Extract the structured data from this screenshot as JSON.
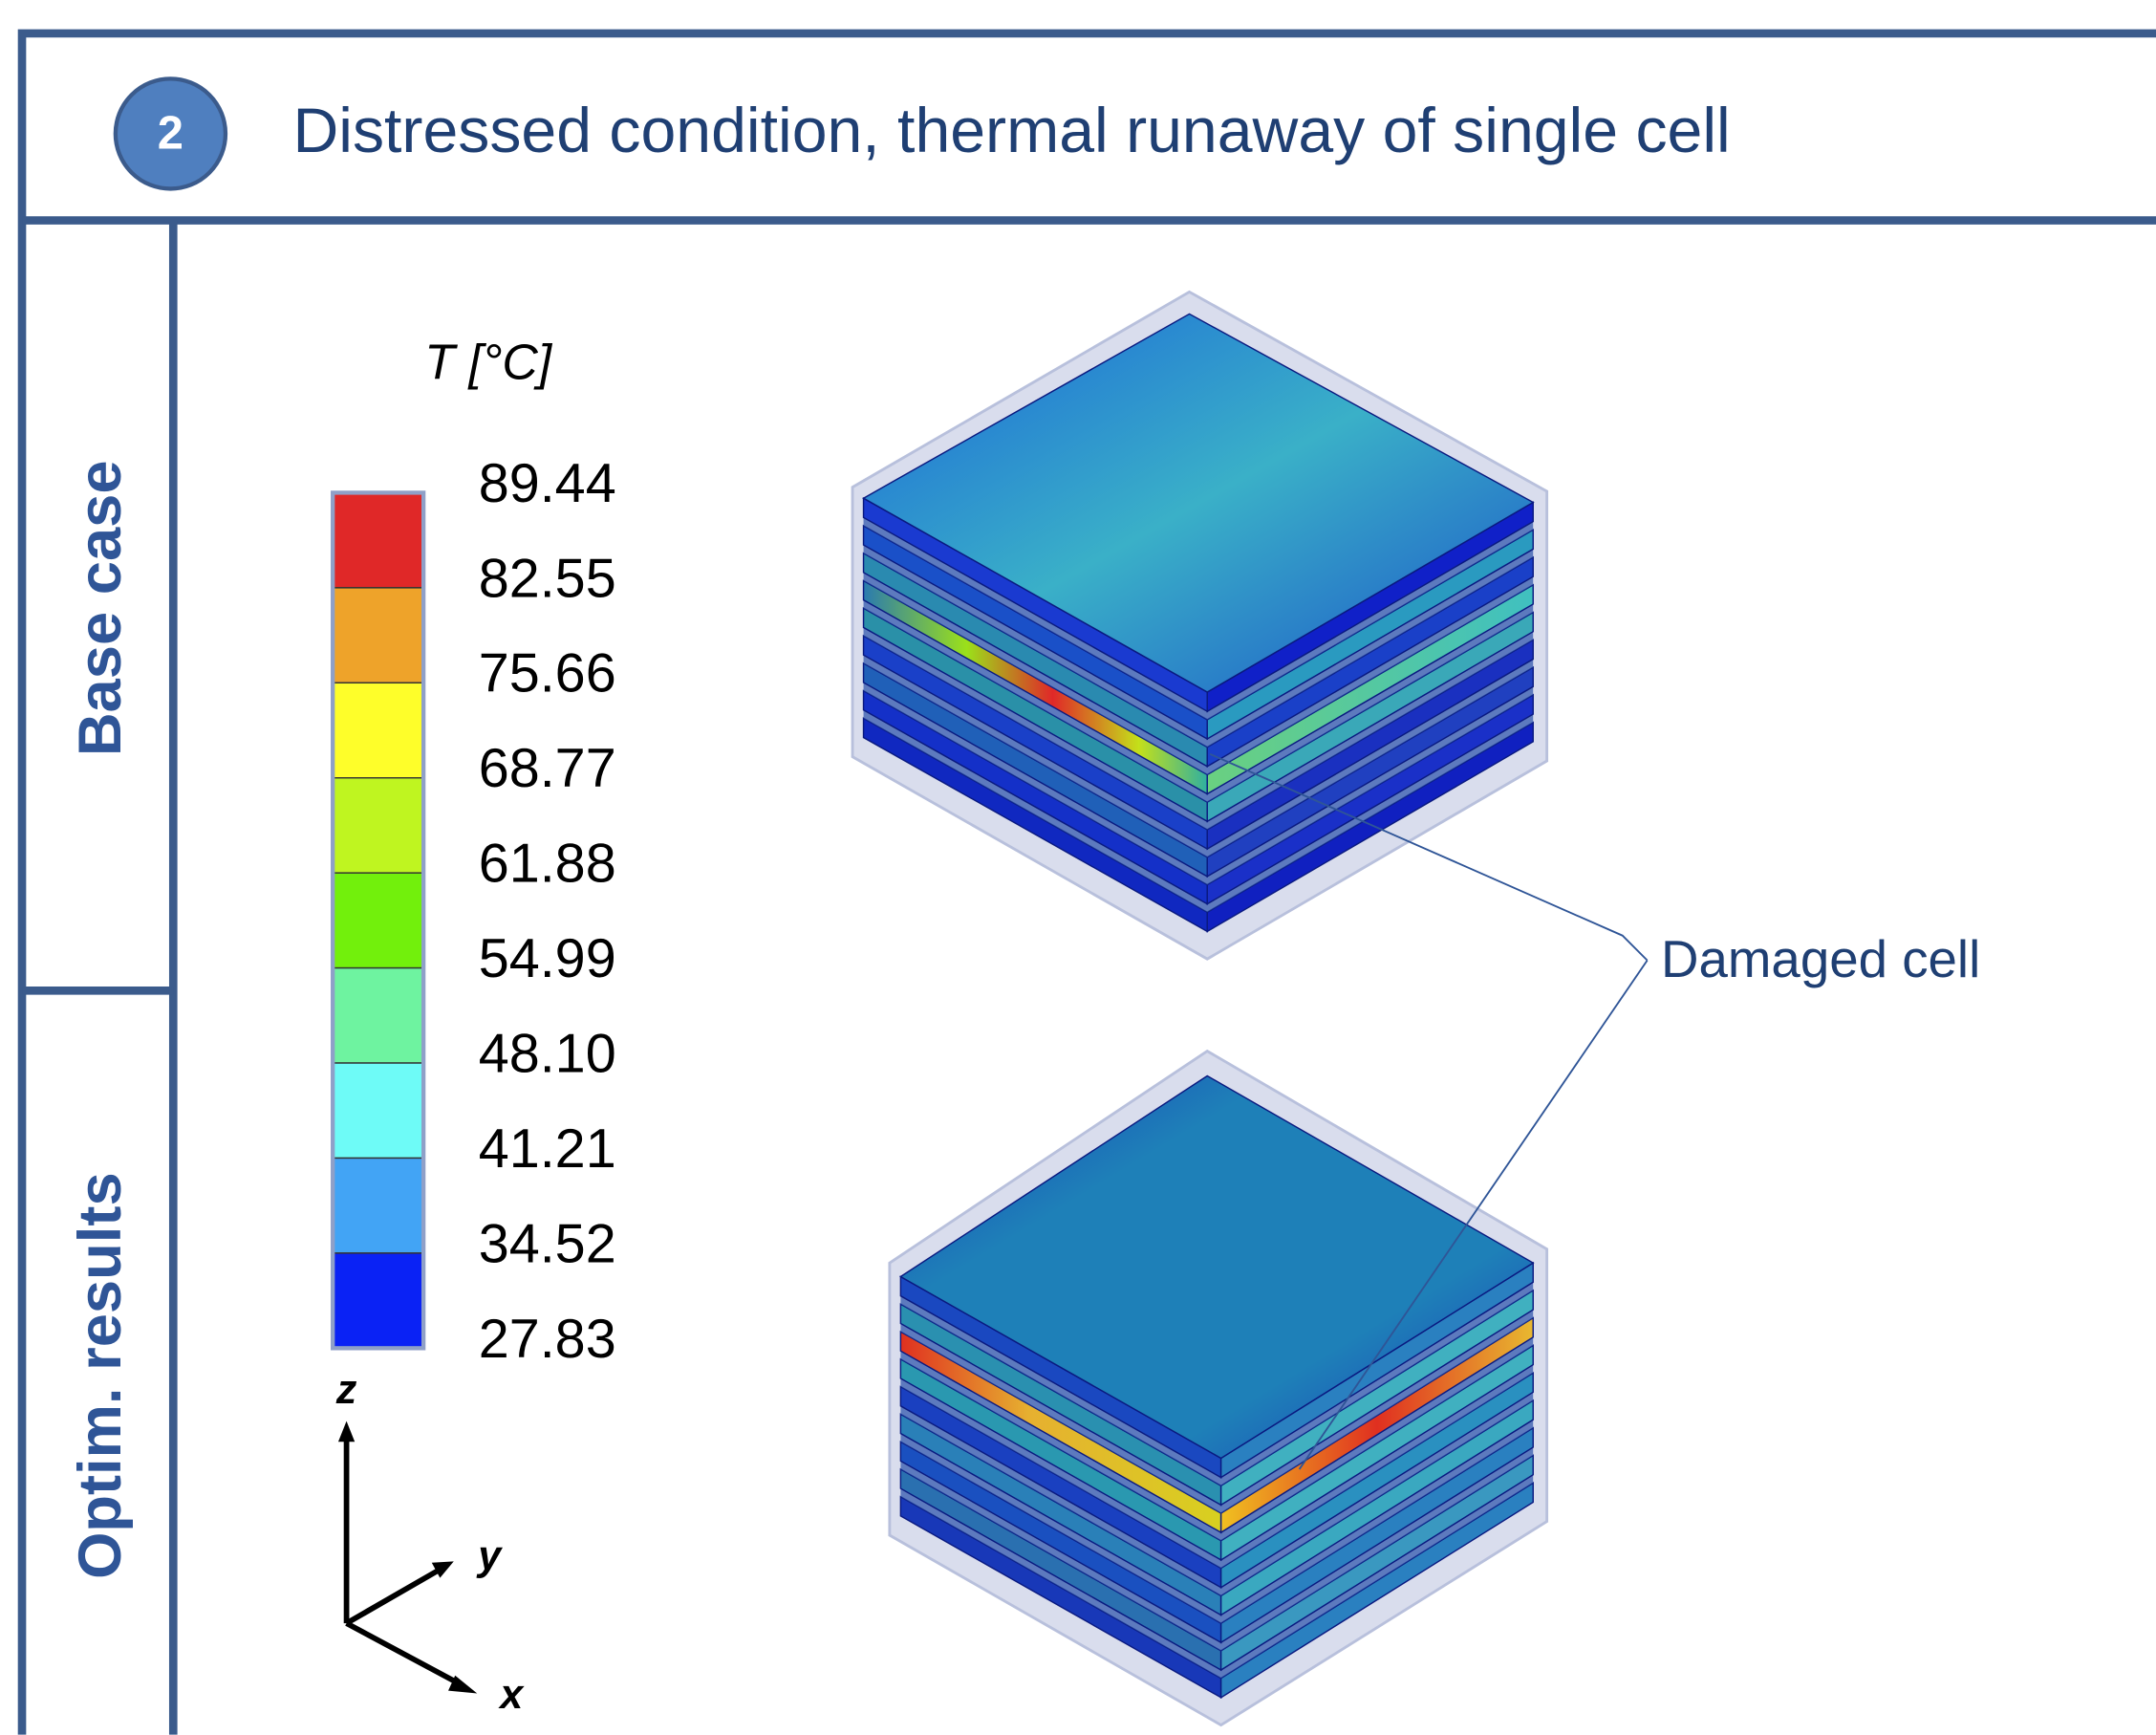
{
  "header": {
    "number": "2",
    "title": "Distressed condition, thermal runaway of single cell"
  },
  "rows": [
    "Base case",
    "Optim. results"
  ],
  "legend": {
    "title": "T [°C]",
    "labels": [
      "89.44",
      "82.55",
      "75.66",
      "68.77",
      "61.88",
      "54.99",
      "48.10",
      "41.21",
      "34.52",
      "27.83"
    ],
    "colors": [
      "#e02828",
      "#eea32a",
      "#fefe2a",
      "#bff520",
      "#72f00c",
      "#6ef3a0",
      "#6efbf7",
      "#42a4f5",
      "#0a22f5"
    ]
  },
  "axes": {
    "z": "z",
    "y": "y",
    "x": "x"
  },
  "annotation": "Damaged cell"
}
